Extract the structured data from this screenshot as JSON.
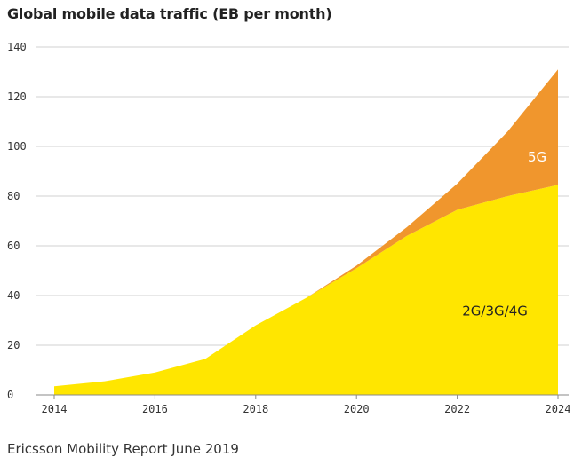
{
  "chart_data": {
    "type": "area",
    "stacked": true,
    "title": "Global mobile data traffic (EB per month)",
    "xlabel": "",
    "ylabel": "",
    "x": [
      2014,
      2015,
      2016,
      2017,
      2018,
      2019,
      2020,
      2021,
      2022,
      2023,
      2024
    ],
    "series": [
      {
        "name": "2G/3G/4G",
        "values": [
          3.5,
          5.5,
          9,
          14.5,
          28,
          39,
          51,
          64,
          74.5,
          80,
          84.5
        ],
        "color": "#FFE600"
      },
      {
        "name": "5G",
        "values": [
          0,
          0,
          0,
          0,
          0,
          0,
          1,
          3.5,
          10.5,
          26,
          46.5
        ],
        "color": "#F0962D"
      }
    ],
    "xticks": [
      "2014",
      "2016",
      "2018",
      "2020",
      "2022",
      "2024"
    ],
    "yticks": [
      "0",
      "20",
      "40",
      "60",
      "80",
      "100",
      "120",
      "140"
    ],
    "xlim": [
      2014,
      2024
    ],
    "ylim": [
      0,
      140
    ],
    "grid": true,
    "annotations": [
      {
        "text": "5G",
        "series": "5G",
        "x": 2023.4,
        "y": 94
      },
      {
        "text": "2G/3G/4G",
        "series": "2G/3G/4G",
        "x": 2022.1,
        "y": 32
      }
    ],
    "source": "Ericsson Mobility Report June 2019"
  }
}
